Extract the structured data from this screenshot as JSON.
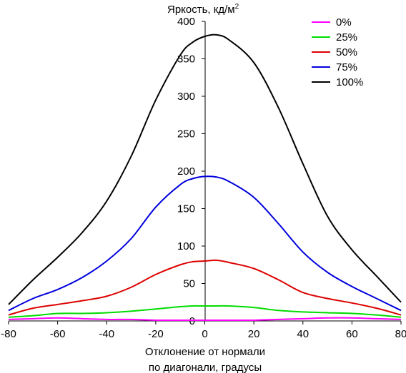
{
  "chart_data": {
    "type": "line",
    "ylabel": "Яркость, кд/м",
    "ylabel_sup": "2",
    "xlabel_line1": "Отклонение от нормали",
    "xlabel_line2": "по диагонали, градусы",
    "xlim": [
      -80,
      80
    ],
    "ylim": [
      0,
      400
    ],
    "x_ticks": [
      -80,
      -60,
      -40,
      -20,
      0,
      20,
      40,
      60,
      80
    ],
    "y_ticks": [
      0,
      50,
      100,
      150,
      200,
      250,
      300,
      350,
      400
    ],
    "grid": false,
    "legend_position": "top-right",
    "x": [
      -80,
      -70,
      -60,
      -50,
      -40,
      -30,
      -20,
      -10,
      -5,
      0,
      5,
      10,
      20,
      30,
      40,
      50,
      60,
      70,
      80
    ],
    "series": [
      {
        "name": "0%",
        "color": "#ff00ff",
        "values": [
          2,
          3,
          4,
          3,
          2,
          2,
          1,
          1,
          1,
          1,
          1,
          1,
          1,
          2,
          3,
          4,
          4,
          3,
          2
        ]
      },
      {
        "name": "25%",
        "color": "#00dd00",
        "values": [
          5,
          7,
          10,
          10,
          11,
          13,
          16,
          19,
          20,
          20,
          20,
          20,
          18,
          14,
          12,
          11,
          10,
          8,
          5
        ]
      },
      {
        "name": "50%",
        "color": "#dd0000",
        "values": [
          8,
          17,
          22,
          27,
          33,
          45,
          62,
          75,
          79,
          80,
          81,
          78,
          70,
          55,
          38,
          30,
          24,
          17,
          8
        ]
      },
      {
        "name": "75%",
        "color": "#0000dd",
        "values": [
          14,
          30,
          42,
          58,
          80,
          110,
          152,
          182,
          190,
          193,
          192,
          186,
          165,
          130,
          92,
          65,
          46,
          30,
          14
        ]
      },
      {
        "name": "100%",
        "color": "#000000",
        "values": [
          22,
          55,
          85,
          118,
          160,
          220,
          295,
          355,
          372,
          380,
          382,
          375,
          345,
          285,
          210,
          140,
          95,
          60,
          25
        ]
      }
    ]
  }
}
